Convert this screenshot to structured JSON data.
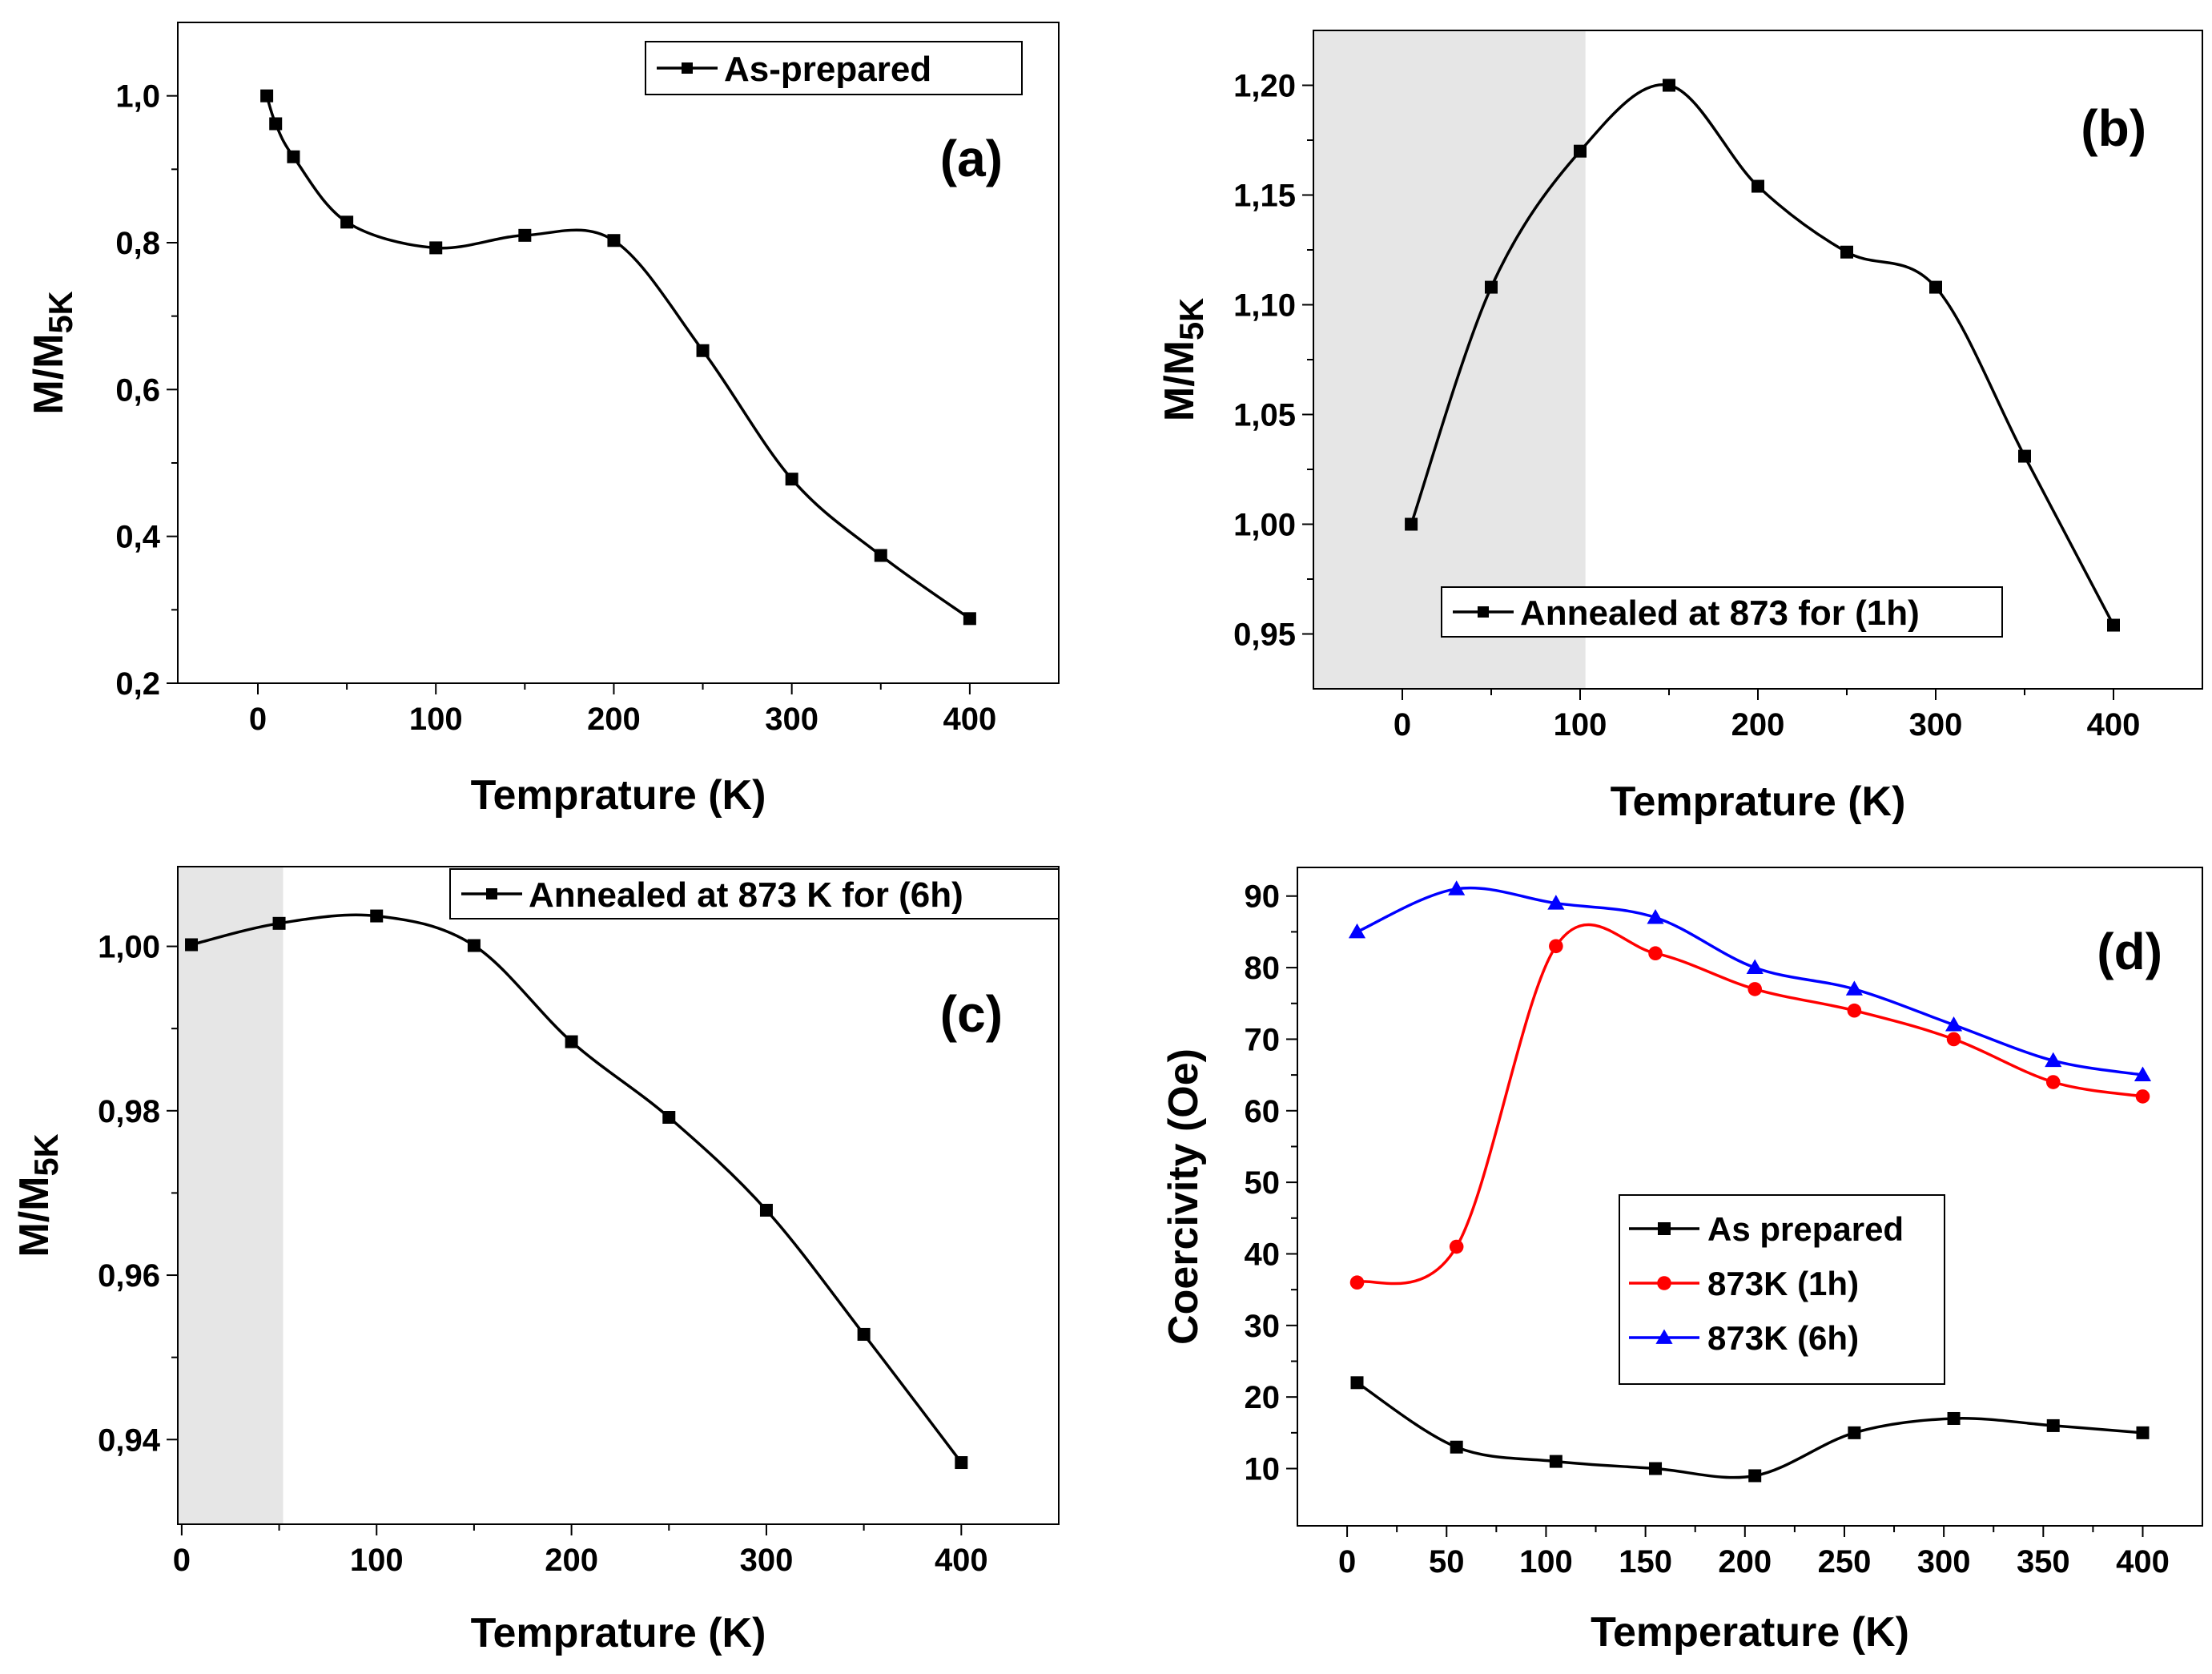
{
  "chart_data": [
    {
      "id": "a",
      "type": "line",
      "panel_label": "(a)",
      "xlabel": "Temprature (K)",
      "ylabel_main": "M/M",
      "ylabel_sub": "5K",
      "xlim": [
        -45,
        450
      ],
      "ylim": [
        0.2,
        1.1
      ],
      "xticks": [
        0,
        100,
        200,
        300,
        400
      ],
      "xtick_labels": [
        "0",
        "100",
        "200",
        "300",
        "400"
      ],
      "yticks": [
        0.2,
        0.4,
        0.6,
        0.8,
        1.0
      ],
      "ytick_labels": [
        "0,2",
        "0,4",
        "0,6",
        "0,8",
        "1,0"
      ],
      "legend": {
        "label": "As-prepared",
        "placement": "top-right"
      },
      "series": [
        {
          "name": "As-prepared",
          "color": "#000000",
          "marker": "square",
          "points": [
            [
              5,
              1.0
            ],
            [
              10,
              0.962
            ],
            [
              20,
              0.917
            ],
            [
              50,
              0.828
            ],
            [
              100,
              0.793
            ],
            [
              150,
              0.81
            ],
            [
              200,
              0.803
            ],
            [
              250,
              0.653
            ],
            [
              300,
              0.478
            ],
            [
              350,
              0.374
            ],
            [
              400,
              0.288
            ]
          ]
        }
      ],
      "shaded_region": null
    },
    {
      "id": "b",
      "type": "line",
      "panel_label": "(b)",
      "xlabel": "Temprature (K)",
      "ylabel_main": "M/M",
      "ylabel_sub": "5K",
      "xlim": [
        -50,
        450
      ],
      "ylim": [
        0.925,
        1.225
      ],
      "xticks": [
        0,
        100,
        200,
        300,
        400
      ],
      "xtick_labels": [
        "0",
        "100",
        "200",
        "300",
        "400"
      ],
      "yticks": [
        0.95,
        1.0,
        1.05,
        1.1,
        1.15,
        1.2
      ],
      "ytick_labels": [
        "0,95",
        "1,00",
        "1,05",
        "1,10",
        "1,15",
        "1,20"
      ],
      "legend": {
        "label": "Annealed at 873 for (1h)",
        "placement": "bottom-center"
      },
      "series": [
        {
          "name": "Annealed at 873 for (1h)",
          "color": "#000000",
          "marker": "square",
          "points": [
            [
              5,
              1.0
            ],
            [
              50,
              1.108
            ],
            [
              100,
              1.17
            ],
            [
              150,
              1.2
            ],
            [
              200,
              1.154
            ],
            [
              250,
              1.124
            ],
            [
              300,
              1.108
            ],
            [
              350,
              1.031
            ],
            [
              400,
              0.954
            ]
          ]
        }
      ],
      "shaded_region": [
        -50,
        103
      ]
    },
    {
      "id": "c",
      "type": "line",
      "panel_label": "(c)",
      "xlabel": "Temprature (K)",
      "ylabel_main": "M/M",
      "ylabel_sub": "5K",
      "xlim": [
        -2,
        450
      ],
      "ylim": [
        0.9297,
        1.0097
      ],
      "xticks": [
        0,
        100,
        200,
        300,
        400
      ],
      "xtick_labels": [
        "0",
        "100",
        "200",
        "300",
        "400"
      ],
      "yticks": [
        0.94,
        0.96,
        0.98,
        1.0
      ],
      "ytick_labels": [
        "0,94",
        "0,96",
        "0,98",
        "1,00"
      ],
      "legend": {
        "label": "Annealed at 873 K for (6h)",
        "placement": "top-right"
      },
      "series": [
        {
          "name": "Annealed at 873 K for (6h)",
          "color": "#000000",
          "marker": "square",
          "points": [
            [
              5,
              1.0002
            ],
            [
              50,
              1.0028
            ],
            [
              100,
              1.0037
            ],
            [
              150,
              1.0001
            ],
            [
              200,
              0.9884
            ],
            [
              250,
              0.9792
            ],
            [
              300,
              0.9679
            ],
            [
              350,
              0.9528
            ],
            [
              400,
              0.9372
            ]
          ]
        }
      ],
      "shaded_region": [
        -2,
        52
      ]
    },
    {
      "id": "d",
      "type": "line",
      "panel_label": "(d)",
      "xlabel": "Temperature (K)",
      "ylabel_main": "Coercivity (Oe)",
      "ylabel_sub": "",
      "xlim": [
        -25,
        430
      ],
      "ylim": [
        2,
        94
      ],
      "xticks": [
        0,
        50,
        100,
        150,
        200,
        250,
        300,
        350,
        400
      ],
      "xtick_labels": [
        "0",
        "50",
        "100",
        "150",
        "200",
        "250",
        "300",
        "350",
        "400"
      ],
      "yticks": [
        10,
        20,
        30,
        40,
        50,
        60,
        70,
        80,
        90
      ],
      "ytick_labels": [
        "10",
        "20",
        "30",
        "40",
        "50",
        "60",
        "70",
        "80",
        "90"
      ],
      "legend": {
        "placement": "center-left"
      },
      "series": [
        {
          "name": "As prepared",
          "color": "#000000",
          "marker": "square",
          "points": [
            [
              5,
              22
            ],
            [
              55,
              13
            ],
            [
              105,
              11
            ],
            [
              155,
              10
            ],
            [
              205,
              9
            ],
            [
              255,
              15
            ],
            [
              305,
              17
            ],
            [
              355,
              16
            ],
            [
              400,
              15
            ]
          ]
        },
        {
          "name": "873K (1h)",
          "color": "#ff0000",
          "marker": "circle",
          "points": [
            [
              5,
              36
            ],
            [
              55,
              41
            ],
            [
              105,
              83
            ],
            [
              155,
              82
            ],
            [
              205,
              77
            ],
            [
              255,
              74
            ],
            [
              305,
              70
            ],
            [
              355,
              64
            ],
            [
              400,
              62
            ]
          ]
        },
        {
          "name": "873K (6h)",
          "color": "#0000ff",
          "marker": "triangle",
          "points": [
            [
              5,
              85
            ],
            [
              55,
              91
            ],
            [
              105,
              89
            ],
            [
              155,
              87
            ],
            [
              205,
              80
            ],
            [
              255,
              77
            ],
            [
              305,
              72
            ],
            [
              355,
              67
            ],
            [
              400,
              65
            ]
          ]
        }
      ],
      "shaded_region": null
    }
  ]
}
